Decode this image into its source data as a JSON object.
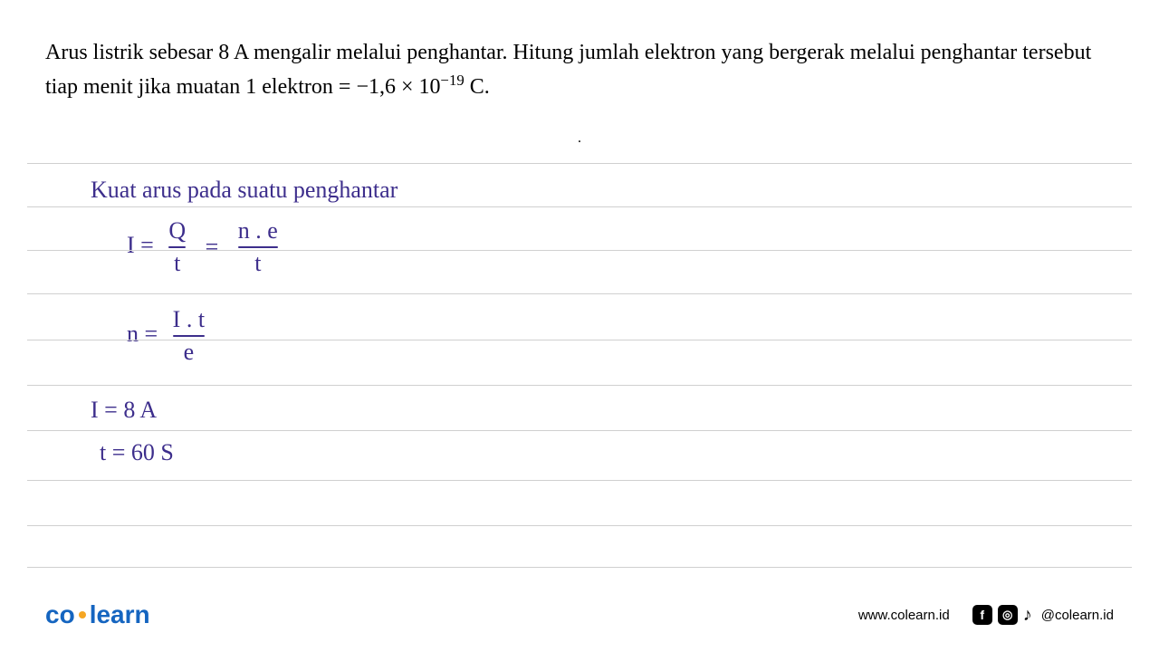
{
  "question": {
    "text_part1": "Arus listrik sebesar 8 A mengalir melalui penghantar. Hitung jumlah elektron yang bergerak melalui penghantar tersebut tiap menit jika muatan 1 elektron = −1,6 × 10",
    "exponent": "−19",
    "text_part2": " C.",
    "fontsize": 24,
    "color": "#000000"
  },
  "notebook": {
    "line_color": "#d0d0d0",
    "line_positions": [
      180,
      228,
      276,
      324,
      375,
      425,
      475,
      530,
      580,
      626
    ],
    "handwriting_color": "#3d2e8c",
    "fontsize": 26
  },
  "handwritten": {
    "title": "Kuat  arus  pada suatu  penghantar",
    "eq1_left": "I  =",
    "eq1_frac1_num": "Q",
    "eq1_frac1_den": "t",
    "eq1_equals": "=",
    "eq1_frac2_num": "n . e",
    "eq1_frac2_den": "t",
    "eq2_left": "n   =",
    "eq2_frac_num": "I . t",
    "eq2_frac_den": "e",
    "eq3": "I   =  8 A",
    "eq4": "t    =  60 S"
  },
  "footer": {
    "logo_co": "co",
    "logo_learn": "learn",
    "logo_color": "#1565c0",
    "logo_dot_color": "#f5a623",
    "logo_fontsize": 28,
    "website": "www.colearn.id",
    "handle": "@colearn.id",
    "website_fontsize": 15,
    "handle_fontsize": 15
  }
}
